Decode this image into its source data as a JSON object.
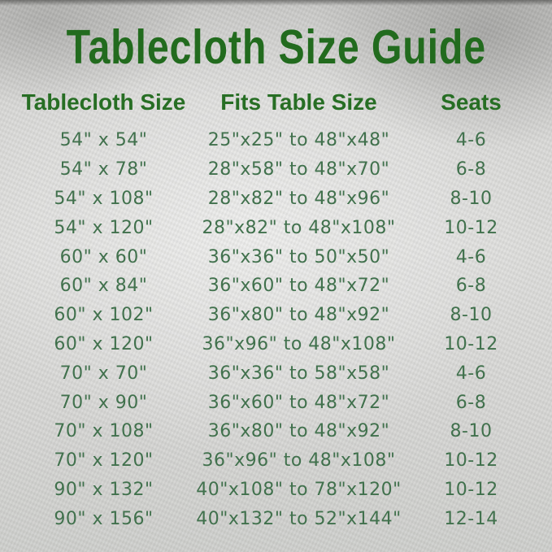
{
  "title": "Tablecloth Size Guide",
  "colors": {
    "title_green": "#226b1e",
    "header_green": "#276e24",
    "body_green": "#41714d",
    "background_silver": "#d5d5d3"
  },
  "chart_data": {
    "type": "table",
    "title": "Tablecloth Size Guide",
    "columns": [
      "Tablecloth Size",
      "Fits Table Size",
      "Seats"
    ],
    "rows": [
      [
        "54\" x 54\"",
        "25\"x25\" to 48\"x48\"",
        "4-6"
      ],
      [
        "54\" x 78\"",
        "28\"x58\" to 48\"x70\"",
        "6-8"
      ],
      [
        "54\" x 108\"",
        "28\"x82\" to 48\"x96\"",
        "8-10"
      ],
      [
        "54\" x 120\"",
        "28\"x82\" to 48\"x108\"",
        "10-12"
      ],
      [
        "60\" x 60\"",
        "36\"x36\" to 50\"x50\"",
        "4-6"
      ],
      [
        "60\" x 84\"",
        "36\"x60\" to 48\"x72\"",
        "6-8"
      ],
      [
        "60\" x 102\"",
        "36\"x80\" to 48\"x92\"",
        "8-10"
      ],
      [
        "60\" x 120\"",
        "36\"x96\" to 48\"x108\"",
        "10-12"
      ],
      [
        "70\" x 70\"",
        "36\"x36\" to 58\"x58\"",
        "4-6"
      ],
      [
        "70\" x 90\"",
        "36\"x60\" to 48\"x72\"",
        "6-8"
      ],
      [
        "70\" x 108\"",
        "36\"x80\" to 48\"x92\"",
        "8-10"
      ],
      [
        "70\" x 120\"",
        "36\"x96\" to 48\"x108\"",
        "10-12"
      ],
      [
        "90\" x 132\"",
        "40\"x108\" to 78\"x120\"",
        "10-12"
      ],
      [
        "90\" x 156\"",
        "40\"x132\" to 52\"x144\"",
        "12-14"
      ]
    ]
  }
}
